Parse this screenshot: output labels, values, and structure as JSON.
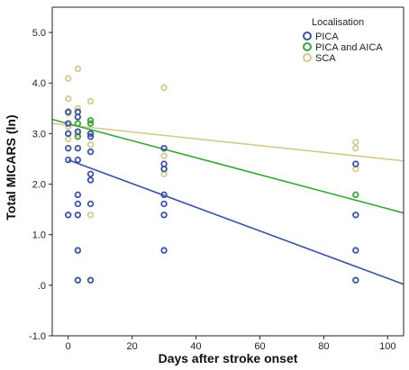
{
  "chart_data": {
    "type": "scatter",
    "title": "",
    "xlabel": "Days after stroke onset",
    "ylabel": "Total MICARS (ln)",
    "xlim": [
      -5,
      105
    ],
    "ylim": [
      -1.0,
      5.5
    ],
    "x_ticks": [
      0,
      20,
      40,
      60,
      80,
      100
    ],
    "x_tick_labels": [
      "0",
      "20",
      "40",
      "60",
      "80",
      "100"
    ],
    "y_ticks": [
      -1.0,
      0.0,
      1.0,
      2.0,
      3.0,
      4.0,
      5.0
    ],
    "y_tick_labels": [
      "-1.0",
      ".0",
      "1.0",
      "2.0",
      "3.0",
      "4.0",
      "5.0"
    ],
    "grid": false,
    "legend": {
      "title": "Localisation",
      "placement": "top-right"
    },
    "series": [
      {
        "name": "PICA",
        "color": "#3a53a4",
        "points": [
          [
            0,
            3.43
          ],
          [
            0,
            3.2
          ],
          [
            0,
            3.0
          ],
          [
            0,
            2.71
          ],
          [
            0,
            2.48
          ],
          [
            0,
            1.39
          ],
          [
            3,
            3.43
          ],
          [
            3,
            3.33
          ],
          [
            3,
            3.04
          ],
          [
            3,
            2.71
          ],
          [
            3,
            2.48
          ],
          [
            3,
            1.79
          ],
          [
            3,
            1.61
          ],
          [
            3,
            1.39
          ],
          [
            3,
            0.69
          ],
          [
            3,
            0.1
          ],
          [
            7,
            3.0
          ],
          [
            7,
            2.94
          ],
          [
            7,
            2.64
          ],
          [
            7,
            2.2
          ],
          [
            7,
            2.08
          ],
          [
            7,
            1.61
          ],
          [
            7,
            0.1
          ],
          [
            30,
            2.71
          ],
          [
            30,
            2.4
          ],
          [
            30,
            2.3
          ],
          [
            30,
            1.79
          ],
          [
            30,
            1.61
          ],
          [
            30,
            1.39
          ],
          [
            30,
            0.69
          ],
          [
            90,
            2.4
          ],
          [
            90,
            1.39
          ],
          [
            90,
            0.69
          ],
          [
            90,
            0.1
          ]
        ],
        "fit_line": {
          "x": [
            0,
            105
          ],
          "y": [
            2.48,
            0.02
          ]
        }
      },
      {
        "name": "PICA and AICA",
        "color": "#3aa63a",
        "points": [
          [
            3,
            3.2
          ],
          [
            3,
            2.94
          ],
          [
            7,
            3.26
          ],
          [
            7,
            3.2
          ],
          [
            30,
            2.3
          ],
          [
            90,
            1.79
          ]
        ],
        "fit_line": {
          "x": [
            -5,
            105
          ],
          "y": [
            3.28,
            1.43
          ]
        }
      },
      {
        "name": "SCA",
        "color": "#d6c98f",
        "points": [
          [
            0,
            4.09
          ],
          [
            0,
            3.69
          ],
          [
            0,
            3.4
          ],
          [
            0,
            3.14
          ],
          [
            0,
            2.89
          ],
          [
            3,
            4.28
          ],
          [
            3,
            3.5
          ],
          [
            3,
            3.0
          ],
          [
            7,
            3.64
          ],
          [
            7,
            2.78
          ],
          [
            7,
            1.39
          ],
          [
            30,
            3.91
          ],
          [
            30,
            2.56
          ],
          [
            30,
            2.2
          ],
          [
            90,
            2.83
          ],
          [
            90,
            2.71
          ],
          [
            90,
            2.3
          ]
        ],
        "fit_line": {
          "x": [
            -5,
            105
          ],
          "y": [
            3.2,
            2.46
          ]
        }
      }
    ]
  }
}
